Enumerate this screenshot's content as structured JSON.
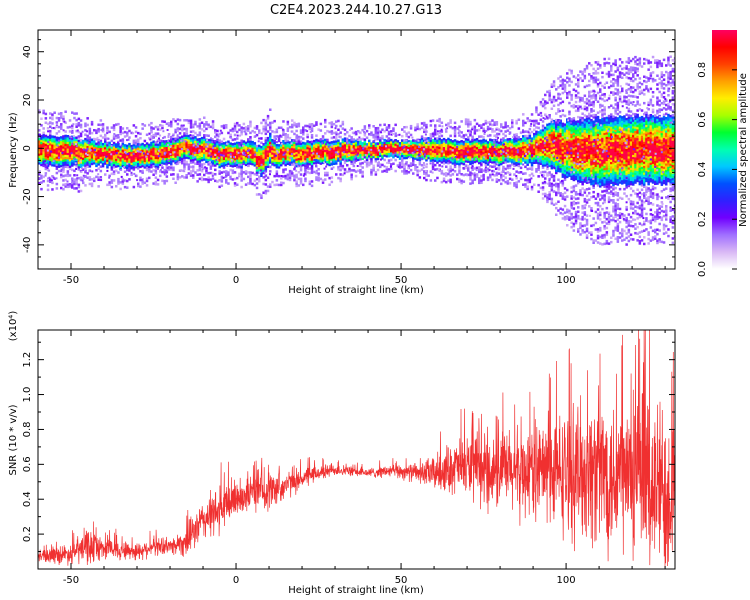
{
  "title": "C2E4.2023.244.10.27.G13",
  "chart_data": [
    {
      "type": "heatmap",
      "xlabel": "Height of straight line (km)",
      "ylabel": "Frequency (Hz)",
      "xlim": [
        -60,
        133
      ],
      "ylim": [
        -50,
        49
      ],
      "xticks": [
        -50,
        0,
        50,
        100
      ],
      "yticks": [
        -40,
        -20,
        0,
        20,
        40
      ],
      "colorbar": {
        "label": "Normalized spectral amplitude",
        "range": [
          0,
          0.96
        ],
        "ticks": [
          "0.0",
          "0.2",
          "0.4",
          "0.6",
          "0.8"
        ],
        "colormap": [
          "#ffffff",
          "#d9b8f5",
          "#a070ff",
          "#7000ff",
          "#2f20ff",
          "#0050ff",
          "#00c8ff",
          "#00ffb0",
          "#00ff30",
          "#a8ff00",
          "#ffee00",
          "#ffa000",
          "#ff4000",
          "#ff0000",
          "#ff0060"
        ]
      },
      "ridge": {
        "x": [
          -60,
          -50,
          -40,
          -35,
          -30,
          -25,
          -20,
          -15,
          -10,
          -5,
          0,
          5,
          7,
          10,
          12,
          15,
          20,
          25,
          30,
          40,
          50,
          60,
          70,
          80,
          90,
          95,
          100,
          110,
          120,
          133
        ],
        "center_hz": [
          0,
          -1,
          -2,
          -3,
          -3,
          -2,
          -1,
          1,
          0,
          -2,
          -2,
          -2,
          -5,
          0,
          -3,
          -1,
          -2,
          -1,
          -1,
          0,
          0,
          0,
          -1,
          -1,
          0,
          2,
          0,
          -1,
          0,
          0
        ],
        "halfwidth_hz": [
          5,
          5,
          4,
          4,
          4,
          4,
          4,
          4,
          4,
          4,
          4,
          4,
          5,
          5,
          4,
          4,
          4,
          4,
          4,
          3,
          3,
          4,
          4,
          4,
          5,
          8,
          10,
          12,
          12,
          12
        ]
      }
    },
    {
      "type": "line",
      "xlabel": "Height of straight line (km)",
      "ylabel": "SNR (10 * v/v)",
      "scale_note": "(x10⁴)",
      "xlim": [
        -60,
        133
      ],
      "ylim": [
        0.0,
        1.37
      ],
      "xticks": [
        -50,
        0,
        50,
        100
      ],
      "yticks": [
        "0.2",
        "0.4",
        "0.6",
        "0.8",
        "1.0",
        "1.2"
      ],
      "line_color": "#f03030",
      "envelope": {
        "x": [
          -60,
          -50,
          -45,
          -40,
          -30,
          -25,
          -20,
          -15,
          -10,
          -5,
          0,
          5,
          10,
          15,
          20,
          25,
          30,
          35,
          40,
          45,
          50,
          55,
          60,
          65,
          70,
          75,
          80,
          85,
          90,
          95,
          100,
          105,
          110,
          115,
          120,
          125,
          133
        ],
        "mean": [
          0.07,
          0.09,
          0.13,
          0.12,
          0.1,
          0.13,
          0.13,
          0.16,
          0.28,
          0.33,
          0.41,
          0.44,
          0.45,
          0.48,
          0.52,
          0.55,
          0.57,
          0.56,
          0.55,
          0.56,
          0.56,
          0.55,
          0.55,
          0.58,
          0.59,
          0.55,
          0.57,
          0.55,
          0.57,
          0.56,
          0.55,
          0.56,
          0.57,
          0.55,
          0.52,
          0.48,
          0.46
        ],
        "spread": [
          0.04,
          0.07,
          0.12,
          0.07,
          0.06,
          0.06,
          0.05,
          0.1,
          0.13,
          0.16,
          0.13,
          0.12,
          0.13,
          0.09,
          0.07,
          0.05,
          0.04,
          0.03,
          0.03,
          0.04,
          0.05,
          0.06,
          0.11,
          0.16,
          0.2,
          0.22,
          0.25,
          0.28,
          0.3,
          0.35,
          0.4,
          0.45,
          0.5,
          0.52,
          0.55,
          0.58,
          0.55
        ],
        "peak_max": 1.37
      }
    }
  ]
}
